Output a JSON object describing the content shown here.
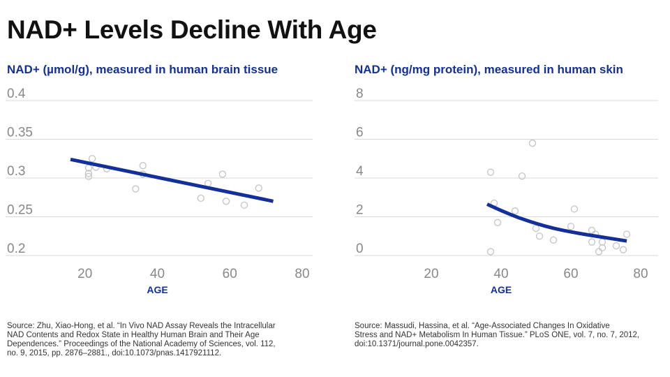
{
  "title": "NAD+ Levels Decline With Age",
  "colors": {
    "trend": "#13309a",
    "subtitle": "#13309a",
    "grid": "#d9d9d9",
    "point": "#c4c4c4"
  },
  "chart_data": [
    {
      "type": "scatter",
      "title": "NAD+ (µmol/g), measured in human brain tissue",
      "xlabel": "AGE",
      "ylabel": "",
      "xlim": [
        0,
        80
      ],
      "ylim": [
        0.2,
        0.4
      ],
      "x_ticks": [
        "20",
        "40",
        "60",
        "80"
      ],
      "y_ticks": [
        "0.4",
        "0.35",
        "0.3",
        "0.25",
        "0.2"
      ],
      "x_tick_values": [
        20,
        40,
        60,
        80
      ],
      "y_tick_values": [
        0.4,
        0.35,
        0.3,
        0.25,
        0.2
      ],
      "points": [
        [
          21,
          0.313
        ],
        [
          21,
          0.306
        ],
        [
          21,
          0.302
        ],
        [
          22,
          0.325
        ],
        [
          23,
          0.314
        ],
        [
          26,
          0.312
        ],
        [
          34,
          0.286
        ],
        [
          36,
          0.316
        ],
        [
          36,
          0.305
        ],
        [
          52,
          0.274
        ],
        [
          54,
          0.293
        ],
        [
          58,
          0.305
        ],
        [
          59,
          0.27
        ],
        [
          64,
          0.265
        ],
        [
          68,
          0.287
        ]
      ],
      "trend": [
        [
          16,
          0.324
        ],
        [
          72,
          0.27
        ]
      ],
      "source_lines": [
        "Source: Zhu, Xiao-Hong, et al. “In Vivo NAD Assay Reveals the Intracellular",
        "NAD Contents and Redox State in Healthy Human Brain and Their Age",
        "Dependences.” Proceedings of the National Academy of Sciences, vol. 112,",
        "no. 9, 2015, pp. 2876–2881., doi:10.1073/pnas.1417921112."
      ]
    },
    {
      "type": "scatter",
      "title": "NAD+ (ng/mg protein), measured in human skin",
      "xlabel": "AGE",
      "ylabel": "",
      "xlim": [
        0,
        80
      ],
      "ylim": [
        0,
        8
      ],
      "x_ticks": [
        "20",
        "40",
        "60",
        "80"
      ],
      "y_ticks": [
        "8",
        "6",
        "4",
        "2",
        "0"
      ],
      "x_tick_values": [
        20,
        40,
        60,
        80
      ],
      "y_tick_values": [
        8,
        6,
        4,
        2,
        0
      ],
      "points": [
        [
          37,
          4.3
        ],
        [
          37,
          0.2
        ],
        [
          38,
          2.7
        ],
        [
          39,
          1.7
        ],
        [
          44,
          2.3
        ],
        [
          46,
          4.1
        ],
        [
          49,
          5.8
        ],
        [
          50,
          1.4
        ],
        [
          51,
          1.0
        ],
        [
          55,
          0.8
        ],
        [
          60,
          1.5
        ],
        [
          61,
          2.4
        ],
        [
          66,
          1.3
        ],
        [
          66,
          0.7
        ],
        [
          67,
          1.1
        ],
        [
          68,
          0.2
        ],
        [
          69,
          0.4
        ],
        [
          69,
          0.7
        ],
        [
          73,
          0.5
        ],
        [
          75,
          0.3
        ],
        [
          76,
          1.1
        ]
      ],
      "trend": [
        [
          36,
          2.65
        ],
        [
          40,
          2.32
        ],
        [
          45,
          1.95
        ],
        [
          50,
          1.65
        ],
        [
          55,
          1.4
        ],
        [
          60,
          1.22
        ],
        [
          65,
          1.06
        ],
        [
          70,
          0.92
        ],
        [
          76,
          0.75
        ]
      ],
      "source_lines": [
        "Source: Massudi, Hassina, et al. “Age-Associated Changes In Oxidative",
        "Stress and NAD+ Metabolism In Human Tissue.” PLoS ONE, vol. 7, no. 7, 2012,",
        "doi:10.1371/journal.pone.0042357."
      ]
    }
  ]
}
